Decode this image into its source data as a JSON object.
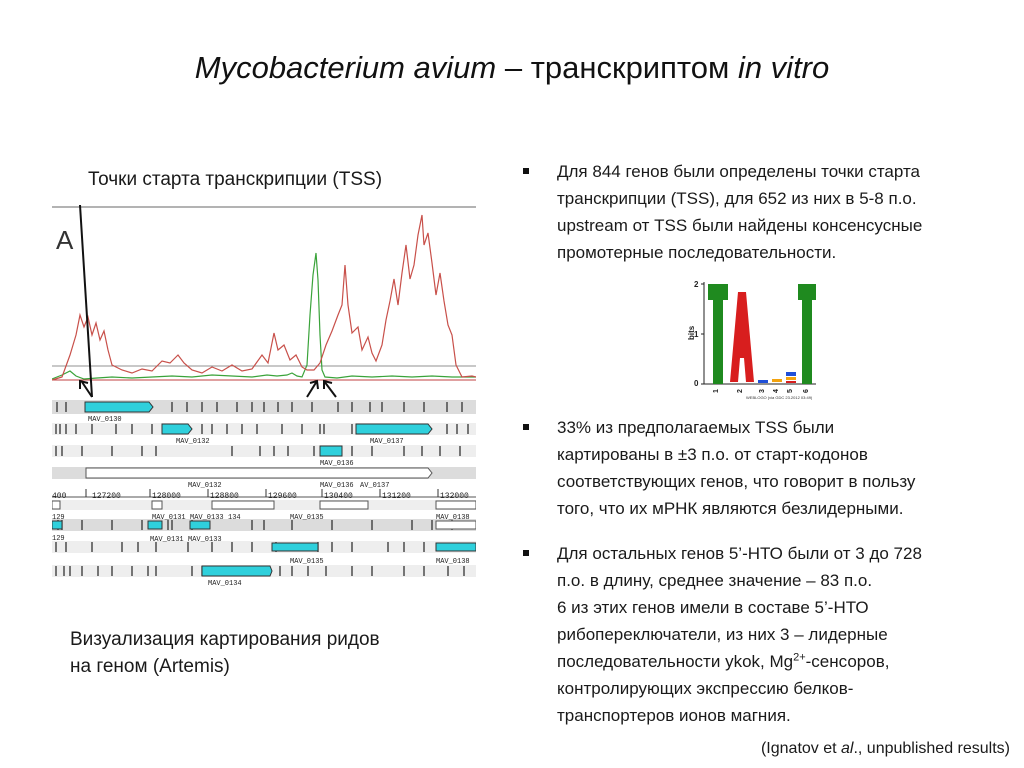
{
  "title": {
    "part1": "Mycobacterium avium",
    "part2": " – транскриптом ",
    "part3": "in vitro"
  },
  "left": {
    "caption_top": "Точки старта транскрипции (TSS)",
    "caption_bottom_line1": "Визуализация картирования ридов",
    "caption_bottom_line2": "на геном (Artemis)",
    "panel_letter": "A",
    "coords": [
      "400",
      "127200",
      "128000",
      "128800",
      "129600",
      "130400",
      "131200",
      "132000"
    ],
    "genes": {
      "mav0130": "MAV_0130",
      "mav0132a": "MAV_0132",
      "mav0137": "MAV_0137",
      "mav0136a": "MAV_0136",
      "mav0132b": "MAV_0132",
      "mav0136b": "MAV_0136",
      "av0137": "AV_0137",
      "r129a": "129",
      "mav0131a": "MAV_0131",
      "mav0133a": "MAV_0133",
      "r134": "134",
      "mav0135a": "MAV_0135",
      "mav0138a": "MAV_0138",
      "r129b": "129",
      "mav0131b": "MAV_0131",
      "mav0133b": "MAV_0133",
      "mav0135b": "MAV_0135",
      "mav0138b": "MAV_0138",
      "mav0134": "MAV_0134"
    }
  },
  "bullets": [
    {
      "lines": [
        "Для 844 генов были определены точки старта",
        "транскрипции (TSS), для 652 из них в 5-8 п.о.",
        "upstream от TSS были найдены консенсусные",
        "промотерные последовательности."
      ]
    },
    {
      "lines": [
        "33% из предполагаемых TSS были",
        "картированы в ±3 п.о. от старт-кодонов",
        "соответствующих генов, что говорит в пользу",
        "того, что их мРНК являются безлидерными."
      ]
    },
    {
      "lines": [
        "Для остальных генов 5’-НТО были от 3 до 728",
        "п.о. в длину, среднее значение – 83 п.о.",
        "6 из этих генов имели в составе 5’-НТО",
        "рибопереключатели, из них 3 – лидерные"
      ],
      "line5_pre": "последовательности ykok, Mg",
      "line5_sup": "2+",
      "line5_post": "-сенсоров,",
      "lines_after": [
        "контролирующих экспрессию белков-",
        "транспортеров ионов магния."
      ]
    }
  ],
  "logo": {
    "ylabel": "bits",
    "y_ticks": [
      "2",
      "1",
      "0"
    ],
    "x_ticks": [
      "1",
      "2",
      "3",
      "4",
      "5",
      "6"
    ],
    "footer": "WEBLOGO (via GDC 23.2012 03:49)",
    "colors": {
      "T": "#1f8a1f",
      "A": "#d81e1e",
      "G": "#f2a30f",
      "C": "#1f4fd8"
    }
  },
  "reference": {
    "pre": "(Ignatov et ",
    "italic": "al",
    "post": "., unpublished results)"
  }
}
